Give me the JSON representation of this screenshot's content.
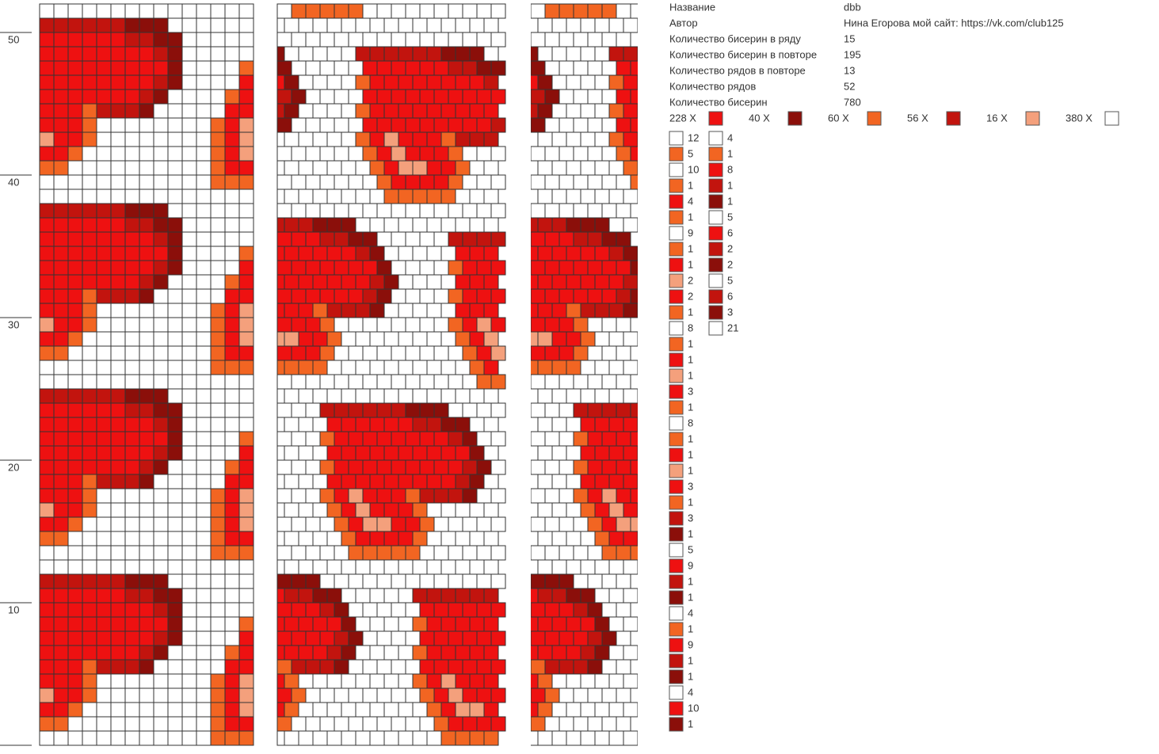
{
  "info": [
    {
      "label": "Название",
      "value": "dbb"
    },
    {
      "label": "Автор",
      "value": "Нина Егорова мой сайт: https://vk.com/club125"
    },
    {
      "label": "Количество бисерин в ряду",
      "value": "15"
    },
    {
      "label": "Количество бисерин в повторе",
      "value": "195"
    },
    {
      "label": "Количество рядов в повторе",
      "value": "13"
    },
    {
      "label": "Количество рядов",
      "value": "52"
    },
    {
      "label": "Количество бисерин",
      "value": "780"
    }
  ],
  "palette": [
    {
      "label": "228 X",
      "color": "#ee1111"
    },
    {
      "label": "40 X",
      "color": "#8b0f0a"
    },
    {
      "label": "60 X",
      "color": "#f26522"
    },
    {
      "label": "56 X",
      "color": "#c2140e"
    },
    {
      "label": "16 X",
      "color": "#f4a07c"
    },
    {
      "label": "380 X",
      "color": "#ffffff"
    }
  ],
  "row_labels": [
    "50",
    "40",
    "30",
    "20",
    "10"
  ],
  "sequence": [
    [
      {
        "color": "#ffffff",
        "count": 12
      },
      {
        "color": "#f26522",
        "count": 5
      },
      {
        "color": "#ffffff",
        "count": 10
      },
      {
        "color": "#f26522",
        "count": 1
      },
      {
        "color": "#ee1111",
        "count": 4
      },
      {
        "color": "#f26522",
        "count": 1
      },
      {
        "color": "#ffffff",
        "count": 9
      },
      {
        "color": "#f26522",
        "count": 1
      },
      {
        "color": "#ee1111",
        "count": 1
      },
      {
        "color": "#f4a07c",
        "count": 2
      },
      {
        "color": "#ee1111",
        "count": 2
      },
      {
        "color": "#f26522",
        "count": 1
      },
      {
        "color": "#ffffff",
        "count": 8
      },
      {
        "color": "#f26522",
        "count": 1
      },
      {
        "color": "#ee1111",
        "count": 1
      },
      {
        "color": "#f4a07c",
        "count": 1
      },
      {
        "color": "#ee1111",
        "count": 3
      },
      {
        "color": "#f26522",
        "count": 1
      },
      {
        "color": "#ffffff",
        "count": 8
      },
      {
        "color": "#f26522",
        "count": 1
      },
      {
        "color": "#ee1111",
        "count": 1
      },
      {
        "color": "#f4a07c",
        "count": 1
      },
      {
        "color": "#ee1111",
        "count": 3
      },
      {
        "color": "#f26522",
        "count": 1
      },
      {
        "color": "#c2140e",
        "count": 3
      },
      {
        "color": "#8b0f0a",
        "count": 1
      },
      {
        "color": "#ffffff",
        "count": 5
      },
      {
        "color": "#ee1111",
        "count": 9
      },
      {
        "color": "#c2140e",
        "count": 1
      },
      {
        "color": "#8b0f0a",
        "count": 1
      },
      {
        "color": "#ffffff",
        "count": 4
      },
      {
        "color": "#f26522",
        "count": 1
      },
      {
        "color": "#ee1111",
        "count": 9
      },
      {
        "color": "#c2140e",
        "count": 1
      },
      {
        "color": "#8b0f0a",
        "count": 1
      },
      {
        "color": "#ffffff",
        "count": 4
      },
      {
        "color": "#ee1111",
        "count": 10
      },
      {
        "color": "#8b0f0a",
        "count": 1
      }
    ],
    [
      {
        "color": "#ffffff",
        "count": 4
      },
      {
        "color": "#f26522",
        "count": 1
      },
      {
        "color": "#ee1111",
        "count": 8
      },
      {
        "color": "#c2140e",
        "count": 1
      },
      {
        "color": "#8b0f0a",
        "count": 1
      },
      {
        "color": "#ffffff",
        "count": 5
      },
      {
        "color": "#ee1111",
        "count": 6
      },
      {
        "color": "#c2140e",
        "count": 2
      },
      {
        "color": "#8b0f0a",
        "count": 2
      },
      {
        "color": "#ffffff",
        "count": 5
      },
      {
        "color": "#c2140e",
        "count": 6
      },
      {
        "color": "#8b0f0a",
        "count": 3
      },
      {
        "color": "#ffffff",
        "count": 21
      }
    ]
  ]
}
